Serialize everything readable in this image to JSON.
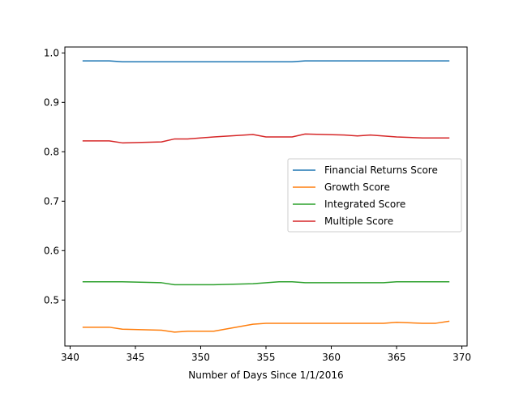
{
  "chart_data": {
    "type": "line",
    "xlabel": "Number of Days Since 1/1/2016",
    "ylabel": "",
    "xlim": [
      339.6,
      370.4
    ],
    "ylim": [
      0.407,
      1.012
    ],
    "xticks": [
      340,
      345,
      350,
      355,
      360,
      365,
      370
    ],
    "yticks": [
      0.5,
      0.6,
      0.7,
      0.8,
      0.9,
      1.0
    ],
    "xtick_labels": [
      "340",
      "345",
      "350",
      "355",
      "360",
      "365",
      "370"
    ],
    "ytick_labels": [
      "0.5",
      "0.6",
      "0.7",
      "0.8",
      "0.9",
      "1.0"
    ],
    "grid": false,
    "legend_position": "center-right",
    "series": [
      {
        "name": "Financial Returns Score",
        "color": "#1f77b4",
        "points": [
          [
            341,
            0.984
          ],
          [
            343,
            0.984
          ],
          [
            344,
            0.982
          ],
          [
            347,
            0.982
          ],
          [
            350,
            0.982
          ],
          [
            353,
            0.982
          ],
          [
            357,
            0.982
          ],
          [
            358,
            0.984
          ],
          [
            361,
            0.984
          ],
          [
            365,
            0.984
          ],
          [
            369,
            0.984
          ]
        ]
      },
      {
        "name": "Growth Score",
        "color": "#ff7f0e",
        "points": [
          [
            341,
            0.445
          ],
          [
            343,
            0.445
          ],
          [
            344,
            0.441
          ],
          [
            347,
            0.439
          ],
          [
            348,
            0.435
          ],
          [
            349,
            0.437
          ],
          [
            351,
            0.437
          ],
          [
            354,
            0.451
          ],
          [
            355,
            0.453
          ],
          [
            358,
            0.453
          ],
          [
            361,
            0.453
          ],
          [
            364,
            0.453
          ],
          [
            365,
            0.455
          ],
          [
            367,
            0.453
          ],
          [
            368,
            0.453
          ],
          [
            369,
            0.457
          ]
        ]
      },
      {
        "name": "Integrated Score",
        "color": "#2ca02c",
        "points": [
          [
            341,
            0.537
          ],
          [
            344,
            0.537
          ],
          [
            347,
            0.535
          ],
          [
            348,
            0.531
          ],
          [
            351,
            0.531
          ],
          [
            354,
            0.533
          ],
          [
            356,
            0.537
          ],
          [
            357,
            0.537
          ],
          [
            358,
            0.535
          ],
          [
            361,
            0.535
          ],
          [
            364,
            0.535
          ],
          [
            365,
            0.537
          ],
          [
            369,
            0.537
          ]
        ]
      },
      {
        "name": "Multiple Score",
        "color": "#d62728",
        "points": [
          [
            341,
            0.822
          ],
          [
            343,
            0.822
          ],
          [
            344,
            0.818
          ],
          [
            347,
            0.82
          ],
          [
            348,
            0.826
          ],
          [
            349,
            0.826
          ],
          [
            351,
            0.83
          ],
          [
            354,
            0.835
          ],
          [
            355,
            0.83
          ],
          [
            357,
            0.83
          ],
          [
            358,
            0.836
          ],
          [
            361,
            0.834
          ],
          [
            362,
            0.832
          ],
          [
            363,
            0.834
          ],
          [
            365,
            0.83
          ],
          [
            367,
            0.828
          ],
          [
            369,
            0.828
          ]
        ]
      }
    ]
  }
}
